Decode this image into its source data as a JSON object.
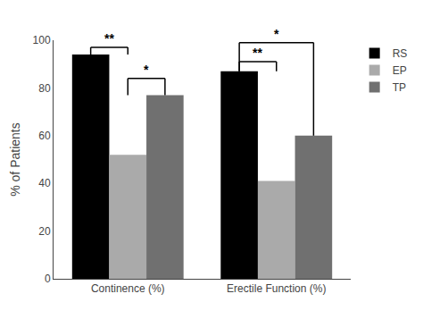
{
  "chart_data": {
    "type": "bar",
    "categories": [
      "Continence (%)",
      "Erectile Function (%)"
    ],
    "series": [
      {
        "name": "RS",
        "color": "#000000",
        "values": [
          94,
          87
        ]
      },
      {
        "name": "EP",
        "color": "#aaaaaa",
        "values": [
          52,
          41
        ]
      },
      {
        "name": "TP",
        "color": "#707070",
        "values": [
          77,
          60
        ]
      }
    ],
    "ylabel": "% of Patients",
    "ylim": [
      0,
      100
    ],
    "yticks": [
      0,
      20,
      40,
      60,
      80,
      100
    ],
    "grid": false,
    "legend": "upper right",
    "annotations": [
      {
        "text": "**",
        "category": "Continence (%)",
        "from": "RS",
        "to": "EP",
        "y_left": 94,
        "y_right": 94,
        "y_top": 97
      },
      {
        "text": "*",
        "category": "Continence (%)",
        "from": "EP",
        "to": "TP",
        "y_left": 77,
        "y_right": 77,
        "y_top": 84
      },
      {
        "text": "**",
        "category": "Erectile Function (%)",
        "from": "RS",
        "to": "EP",
        "y_left": 87,
        "y_right": 87,
        "y_top": 91
      },
      {
        "text": "*",
        "category": "Erectile Function (%)",
        "from": "RS",
        "to": "TP",
        "y_left": 87,
        "y_right": 60,
        "y_top": 99
      }
    ]
  }
}
